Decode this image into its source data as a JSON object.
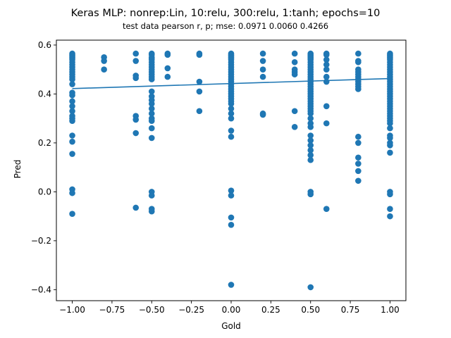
{
  "chart_data": {
    "type": "scatter",
    "title": "Keras MLP: nonrep:Lin, 10:relu, 300:relu, 1:tanh; epochs=10",
    "subtitle": "test data pearson r, p; mse:  0.0971  0.0060  0.4266",
    "xlabel": "Gold",
    "ylabel": "Pred",
    "xlim": [
      -1.1,
      1.1
    ],
    "ylim": [
      -0.445,
      0.62
    ],
    "xticks": [
      -1.0,
      -0.75,
      -0.5,
      -0.25,
      0.0,
      0.25,
      0.5,
      0.75,
      1.0
    ],
    "xtick_labels": [
      "−1.00",
      "−0.75",
      "−0.50",
      "−0.25",
      "0.00",
      "0.25",
      "0.50",
      "0.75",
      "1.00"
    ],
    "yticks": [
      -0.4,
      -0.2,
      0.0,
      0.2,
      0.4,
      0.6
    ],
    "ytick_labels": [
      "−0.4",
      "−0.2",
      "0.0",
      "0.2",
      "0.4",
      "0.6"
    ],
    "grid": false,
    "marker_color": "#1f77b4",
    "line_color": "#1f77b4",
    "fit_line": {
      "x": [
        -1.0,
        1.0
      ],
      "y": [
        0.422,
        0.463
      ]
    },
    "groups": [
      {
        "x": -1.0,
        "y": [
          0.565,
          0.56,
          0.555,
          0.55,
          0.545,
          0.54,
          0.53,
          0.52,
          0.51,
          0.5,
          0.49,
          0.48,
          0.47,
          0.46,
          0.44,
          0.405,
          0.395,
          0.37,
          0.35,
          0.33,
          0.31,
          0.3,
          0.29,
          0.23,
          0.205,
          0.155,
          0.01,
          -0.005,
          -0.09
        ]
      },
      {
        "x": -0.8,
        "y": [
          0.55,
          0.535,
          0.5
        ]
      },
      {
        "x": -0.6,
        "y": [
          0.565,
          0.535,
          0.475,
          0.465,
          0.31,
          0.295,
          0.24,
          -0.065
        ]
      },
      {
        "x": -0.5,
        "y": [
          0.565,
          0.56,
          0.55,
          0.545,
          0.54,
          0.53,
          0.52,
          0.51,
          0.5,
          0.49,
          0.48,
          0.47,
          0.46,
          0.41,
          0.39,
          0.375,
          0.36,
          0.34,
          0.32,
          0.3,
          0.29,
          0.26,
          0.22,
          0.0,
          -0.015,
          -0.07,
          -0.08
        ]
      },
      {
        "x": -0.4,
        "y": [
          0.565,
          0.56,
          0.505,
          0.47
        ]
      },
      {
        "x": -0.2,
        "y": [
          0.565,
          0.56,
          0.45,
          0.41,
          0.33
        ]
      },
      {
        "x": 0.0,
        "y": [
          0.565,
          0.56,
          0.555,
          0.55,
          0.545,
          0.54,
          0.53,
          0.52,
          0.51,
          0.5,
          0.49,
          0.48,
          0.47,
          0.46,
          0.45,
          0.44,
          0.43,
          0.42,
          0.41,
          0.4,
          0.39,
          0.38,
          0.37,
          0.36,
          0.34,
          0.32,
          0.3,
          0.25,
          0.225,
          0.005,
          -0.015,
          -0.105,
          -0.135,
          -0.38
        ]
      },
      {
        "x": 0.2,
        "y": [
          0.565,
          0.535,
          0.5,
          0.47,
          0.32,
          0.315
        ]
      },
      {
        "x": 0.4,
        "y": [
          0.565,
          0.53,
          0.5,
          0.49,
          0.48,
          0.33,
          0.265
        ]
      },
      {
        "x": 0.5,
        "y": [
          0.565,
          0.56,
          0.555,
          0.55,
          0.545,
          0.54,
          0.53,
          0.52,
          0.51,
          0.5,
          0.49,
          0.48,
          0.47,
          0.46,
          0.45,
          0.44,
          0.43,
          0.42,
          0.41,
          0.4,
          0.39,
          0.38,
          0.37,
          0.36,
          0.35,
          0.34,
          0.33,
          0.32,
          0.3,
          0.28,
          0.265,
          0.23,
          0.21,
          0.19,
          0.17,
          0.15,
          0.13,
          0.0,
          -0.01,
          -0.39
        ]
      },
      {
        "x": 0.6,
        "y": [
          0.565,
          0.56,
          0.54,
          0.52,
          0.5,
          0.47,
          0.45,
          0.35,
          0.28,
          -0.07
        ]
      },
      {
        "x": 0.8,
        "y": [
          0.565,
          0.535,
          0.53,
          0.5,
          0.49,
          0.48,
          0.47,
          0.46,
          0.45,
          0.44,
          0.43,
          0.42,
          0.225,
          0.2,
          0.14,
          0.115,
          0.085,
          0.045
        ]
      },
      {
        "x": 1.0,
        "y": [
          0.565,
          0.56,
          0.555,
          0.55,
          0.545,
          0.54,
          0.53,
          0.52,
          0.51,
          0.5,
          0.49,
          0.48,
          0.47,
          0.46,
          0.45,
          0.44,
          0.43,
          0.42,
          0.41,
          0.4,
          0.39,
          0.38,
          0.37,
          0.36,
          0.35,
          0.34,
          0.33,
          0.32,
          0.31,
          0.3,
          0.29,
          0.28,
          0.26,
          0.23,
          0.22,
          0.2,
          0.19,
          0.16,
          0.0,
          -0.01,
          -0.07,
          -0.1
        ]
      }
    ]
  }
}
